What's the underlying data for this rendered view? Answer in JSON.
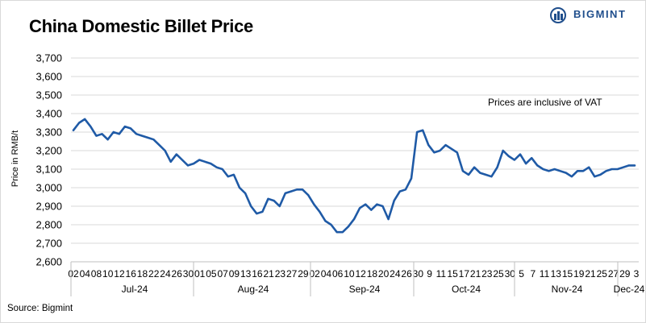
{
  "header": {
    "title": "China Domestic Billet Price",
    "brand": "BIGMINT"
  },
  "footer": {
    "source": "Source: Bigmint"
  },
  "colors": {
    "line": "#1f5aa6",
    "grid": "#d9d9d9",
    "brand": "#1f4e8c"
  },
  "chart_data": {
    "type": "line",
    "title": "China Domestic Billet Price",
    "ylabel": "Price in RMB/t",
    "xlabel": "",
    "ylim": [
      2600,
      3700
    ],
    "yticks": [
      "2,600",
      "2,700",
      "2,800",
      "2,900",
      "3,000",
      "3,100",
      "3,200",
      "3,300",
      "3,400",
      "3,500",
      "3,600",
      "3,700"
    ],
    "grid": "horizontal",
    "legend": "none",
    "annotation": "Prices are inclusive of VAT",
    "x_ticks": [
      "02",
      "04",
      "08",
      "10",
      "12",
      "16",
      "18",
      "22",
      "24",
      "26",
      "30",
      "01",
      "05",
      "07",
      "09",
      "13",
      "16",
      "21",
      "23",
      "27",
      "29",
      "02",
      "04",
      "06",
      "10",
      "12",
      "18",
      "20",
      "24",
      "26",
      "30",
      "9",
      "11",
      "15",
      "17",
      "21",
      "23",
      "25",
      "30",
      "5",
      "7",
      "11",
      "13",
      "15",
      "19",
      "21",
      "25",
      "27",
      "29",
      "3"
    ],
    "months": [
      "Jul-24",
      "Aug-24",
      "Sep-24",
      "Oct-24",
      "Nov-24",
      "Dec-24"
    ],
    "series": [
      {
        "values": [
          3310,
          3350,
          3370,
          3330,
          3280,
          3290,
          3260,
          3300,
          3290,
          3330,
          3320,
          3290,
          3280,
          3270,
          3260,
          3230,
          3200,
          3140,
          3180,
          3150,
          3120,
          3130,
          3150,
          3140,
          3130,
          3110,
          3100,
          3060,
          3070,
          3000,
          2970,
          2900,
          2860,
          2870,
          2940,
          2930,
          2900,
          2970,
          2980,
          2990,
          2990,
          2960,
          2910,
          2870,
          2820,
          2800,
          2760,
          2760,
          2790,
          2830,
          2890,
          2910,
          2880,
          2910,
          2900,
          2830,
          2930,
          2980,
          2990,
          3050,
          3300,
          3310,
          3230,
          3190,
          3200,
          3230,
          3210,
          3190,
          3090,
          3070,
          3110,
          3080,
          3070,
          3060,
          3110,
          3200,
          3170,
          3150,
          3180,
          3130,
          3160,
          3120,
          3100,
          3090,
          3100,
          3090,
          3080,
          3060,
          3090,
          3090,
          3110,
          3060,
          3070,
          3090,
          3100,
          3100,
          3110,
          3120,
          3120
        ]
      }
    ]
  }
}
